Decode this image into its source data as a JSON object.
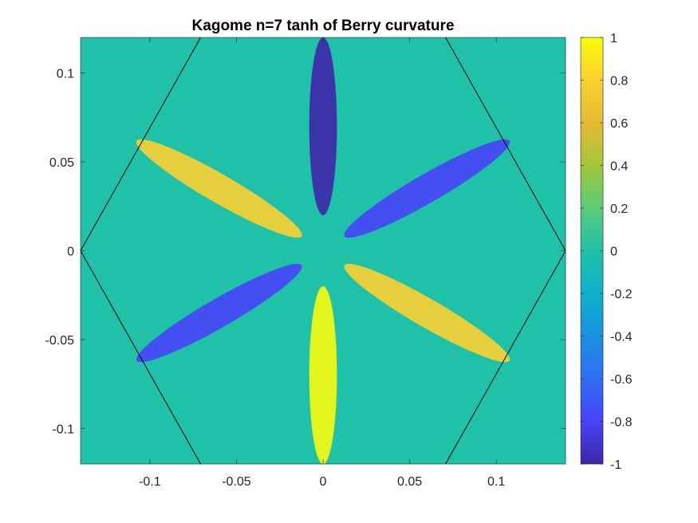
{
  "chart_data": {
    "type": "heatmap",
    "title": "Kagome n=7 tanh of Berry curvature",
    "xlabel": "",
    "ylabel": "",
    "xlim": [
      -0.14,
      0.14
    ],
    "ylim": [
      -0.12,
      0.12
    ],
    "x_ticks": [
      -0.1,
      -0.05,
      0,
      0.05,
      0.1
    ],
    "x_tick_labels": [
      "-0.1",
      "-0.05",
      "0",
      "0.05",
      "0.1"
    ],
    "y_ticks": [
      -0.1,
      -0.05,
      0,
      0.05,
      0.1
    ],
    "y_tick_labels": [
      "-0.1",
      "-0.05",
      "0",
      "0.05",
      "0.1"
    ],
    "colorbar": {
      "limits": [
        -1,
        1
      ],
      "ticks": [
        -1,
        -0.8,
        -0.6,
        -0.4,
        -0.2,
        0,
        0.2,
        0.4,
        0.6,
        0.8,
        1
      ],
      "tick_labels": [
        "-1",
        "-0.8",
        "-0.6",
        "-0.4",
        "-0.2",
        "0",
        "0.2",
        "0.4",
        "0.6",
        "0.8",
        "1"
      ],
      "colormap": "parula"
    },
    "overlay_hexagon": {
      "vertices": [
        [
          0.14,
          0
        ],
        [
          0.07,
          0.1212
        ],
        [
          -0.07,
          0.1212
        ],
        [
          -0.14,
          0
        ],
        [
          -0.07,
          -0.1212
        ],
        [
          0.07,
          -0.1212
        ]
      ],
      "color": "#000000"
    },
    "grid": false,
    "legend": "none",
    "background_value": 0,
    "features": [
      {
        "kind": "lobe",
        "cx": 0,
        "cy": 0.07,
        "rx": 0.008,
        "ry": 0.05,
        "value": -1
      },
      {
        "kind": "lobe",
        "cx": 0,
        "cy": -0.07,
        "rx": 0.008,
        "ry": 0.05,
        "value": 1
      },
      {
        "kind": "lobe",
        "cx": 0.06,
        "cy": 0.035,
        "rx": 0.055,
        "ry": 0.008,
        "angle": -30,
        "value": -0.8
      },
      {
        "kind": "lobe",
        "cx": -0.06,
        "cy": 0.035,
        "rx": 0.055,
        "ry": 0.008,
        "angle": 30,
        "value": 0.8
      },
      {
        "kind": "lobe",
        "cx": 0.06,
        "cy": -0.035,
        "rx": 0.055,
        "ry": 0.008,
        "angle": 30,
        "value": 0.8
      },
      {
        "kind": "lobe",
        "cx": -0.06,
        "cy": -0.035,
        "rx": 0.055,
        "ry": 0.008,
        "angle": -30,
        "value": -0.8
      }
    ]
  },
  "colors": {
    "parula": [
      "#3e26a8",
      "#4743f8",
      "#2f6ff1",
      "#1a91e1",
      "#0fb0c8",
      "#1fc1a8",
      "#5acb77",
      "#a4c639",
      "#e3ba33",
      "#fcd030",
      "#f9fb0e"
    ],
    "axes_text": "#262626",
    "hexagon": "#000000"
  }
}
